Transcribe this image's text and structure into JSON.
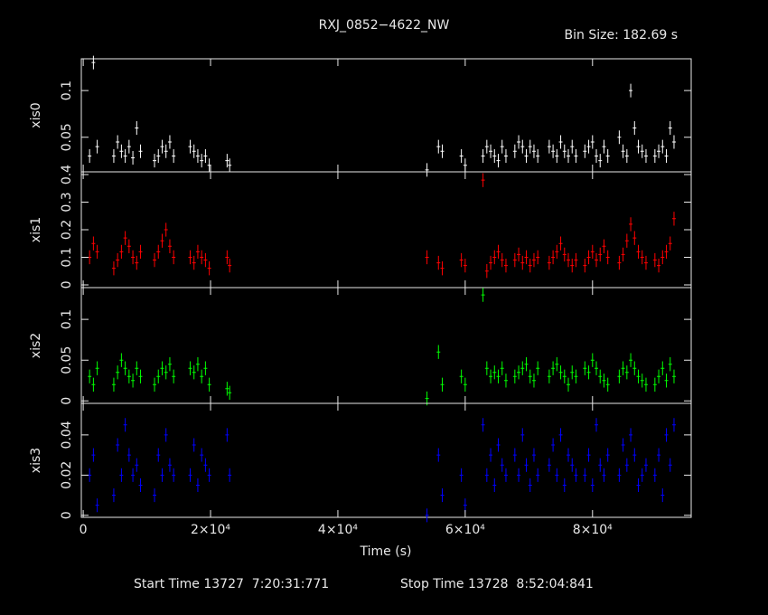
{
  "chart_data": {
    "type": "errorbar",
    "title": "RXJ_0852−4622_NW",
    "subtitle": "Bin Size: 182.69 s",
    "xlabel": "Time (s)",
    "footer": [
      "Start Time 13727  7:20:31:771",
      "Stop Time 13728  8:52:04:841"
    ],
    "xlim": [
      -300,
      95500
    ],
    "xticks": [
      0,
      {
        "value": 20000,
        "label": "2×10⁴"
      },
      {
        "value": 40000,
        "label": "4×10⁴"
      },
      {
        "value": 60000,
        "label": "6×10⁴"
      },
      {
        "value": 80000,
        "label": "8×10⁴"
      }
    ],
    "x": [
      1000,
      1600,
      2200,
      4800,
      5400,
      6000,
      6600,
      7200,
      7800,
      8400,
      9000,
      11200,
      11800,
      12400,
      13000,
      13600,
      14200,
      16800,
      17400,
      18000,
      18600,
      19200,
      19800,
      22600,
      23000,
      54000,
      55800,
      56400,
      59400,
      60000,
      62800,
      63400,
      64000,
      64600,
      65200,
      65800,
      66400,
      67800,
      68400,
      69000,
      69600,
      70200,
      70800,
      71400,
      73200,
      73800,
      74400,
      75000,
      75600,
      76200,
      76800,
      77400,
      78800,
      79400,
      80000,
      80600,
      81200,
      81800,
      82400,
      84200,
      84800,
      85400,
      86000,
      86600,
      87200,
      87800,
      88400,
      89800,
      90400,
      91000,
      91600,
      92200,
      92800
    ],
    "series": [
      {
        "name": "xis0",
        "color": "#ffffff",
        "ylim": [
          0.013,
          0.134
        ],
        "yticks": [
          0.05,
          0.1
        ],
        "values": [
          0.03,
          0.13,
          0.04,
          0.03,
          0.045,
          0.035,
          0.03,
          0.04,
          0.028,
          0.06,
          0.035,
          0.025,
          0.03,
          0.04,
          0.035,
          0.045,
          0.03,
          0.04,
          0.035,
          0.03,
          0.025,
          0.03,
          0.02,
          0.025,
          0.02,
          0.015,
          0.04,
          0.035,
          0.03,
          0.02,
          0.03,
          0.04,
          0.035,
          0.03,
          0.025,
          0.04,
          0.03,
          0.035,
          0.045,
          0.04,
          0.03,
          0.04,
          0.035,
          0.03,
          0.04,
          0.035,
          0.03,
          0.045,
          0.035,
          0.03,
          0.04,
          0.03,
          0.035,
          0.04,
          0.045,
          0.03,
          0.025,
          0.04,
          0.03,
          0.05,
          0.035,
          0.03,
          0.1,
          0.06,
          0.04,
          0.035,
          0.03,
          0.03,
          0.035,
          0.04,
          0.03,
          0.06,
          0.045
        ]
      },
      {
        "name": "xis1",
        "color": "#ff0000",
        "ylim": [
          -0.01,
          0.41
        ],
        "yticks": [
          0,
          0.1,
          0.2,
          0.3,
          0.4
        ],
        "values": [
          0.1,
          0.15,
          0.12,
          0.06,
          0.09,
          0.12,
          0.17,
          0.14,
          0.1,
          0.08,
          0.12,
          0.09,
          0.12,
          0.16,
          0.2,
          0.14,
          0.1,
          0.1,
          0.08,
          0.12,
          0.1,
          0.09,
          0.06,
          0.1,
          0.07,
          0.1,
          0.08,
          0.06,
          0.09,
          0.07,
          0.38,
          0.05,
          0.08,
          0.1,
          0.12,
          0.09,
          0.07,
          0.09,
          0.11,
          0.08,
          0.1,
          0.07,
          0.09,
          0.1,
          0.08,
          0.1,
          0.12,
          0.15,
          0.11,
          0.09,
          0.07,
          0.09,
          0.07,
          0.1,
          0.12,
          0.09,
          0.11,
          0.14,
          0.1,
          0.08,
          0.11,
          0.16,
          0.22,
          0.17,
          0.12,
          0.1,
          0.08,
          0.09,
          0.07,
          0.1,
          0.12,
          0.15,
          0.24
        ]
      },
      {
        "name": "xis2",
        "color": "#00ff00",
        "ylim": [
          -0.003,
          0.139
        ],
        "yticks": [
          0,
          0.05,
          0.1
        ],
        "values": [
          0.03,
          0.02,
          0.04,
          0.02,
          0.035,
          0.05,
          0.04,
          0.03,
          0.025,
          0.04,
          0.03,
          0.02,
          0.03,
          0.04,
          0.035,
          0.045,
          0.03,
          0.04,
          0.035,
          0.045,
          0.03,
          0.04,
          0.02,
          0.015,
          0.01,
          0.003,
          0.06,
          0.02,
          0.03,
          0.02,
          0.13,
          0.04,
          0.03,
          0.035,
          0.03,
          0.04,
          0.025,
          0.03,
          0.035,
          0.04,
          0.045,
          0.03,
          0.025,
          0.04,
          0.03,
          0.04,
          0.045,
          0.035,
          0.03,
          0.02,
          0.035,
          0.03,
          0.04,
          0.035,
          0.05,
          0.04,
          0.03,
          0.025,
          0.02,
          0.03,
          0.04,
          0.035,
          0.05,
          0.04,
          0.03,
          0.025,
          0.02,
          0.02,
          0.03,
          0.04,
          0.025,
          0.045,
          0.03
        ]
      },
      {
        "name": "xis3",
        "color": "#0000ff",
        "ylim": [
          -0.001,
          0.0557
        ],
        "yticks": [
          0,
          0.02,
          0.04
        ],
        "values": [
          0.02,
          0.03,
          0.005,
          0.01,
          0.035,
          0.02,
          0.045,
          0.03,
          0.02,
          0.025,
          0.015,
          0.01,
          0.03,
          0.02,
          0.04,
          0.025,
          0.02,
          0.02,
          0.035,
          0.015,
          0.03,
          0.025,
          0.02,
          0.04,
          0.02,
          0.0,
          0.03,
          0.01,
          0.02,
          0.005,
          0.045,
          0.02,
          0.03,
          0.015,
          0.035,
          0.025,
          0.02,
          0.03,
          0.02,
          0.04,
          0.025,
          0.015,
          0.03,
          0.02,
          0.025,
          0.035,
          0.02,
          0.04,
          0.015,
          0.03,
          0.025,
          0.02,
          0.02,
          0.03,
          0.015,
          0.045,
          0.025,
          0.02,
          0.03,
          0.02,
          0.035,
          0.025,
          0.04,
          0.03,
          0.015,
          0.02,
          0.025,
          0.02,
          0.03,
          0.01,
          0.04,
          0.025,
          0.045
        ]
      }
    ]
  }
}
